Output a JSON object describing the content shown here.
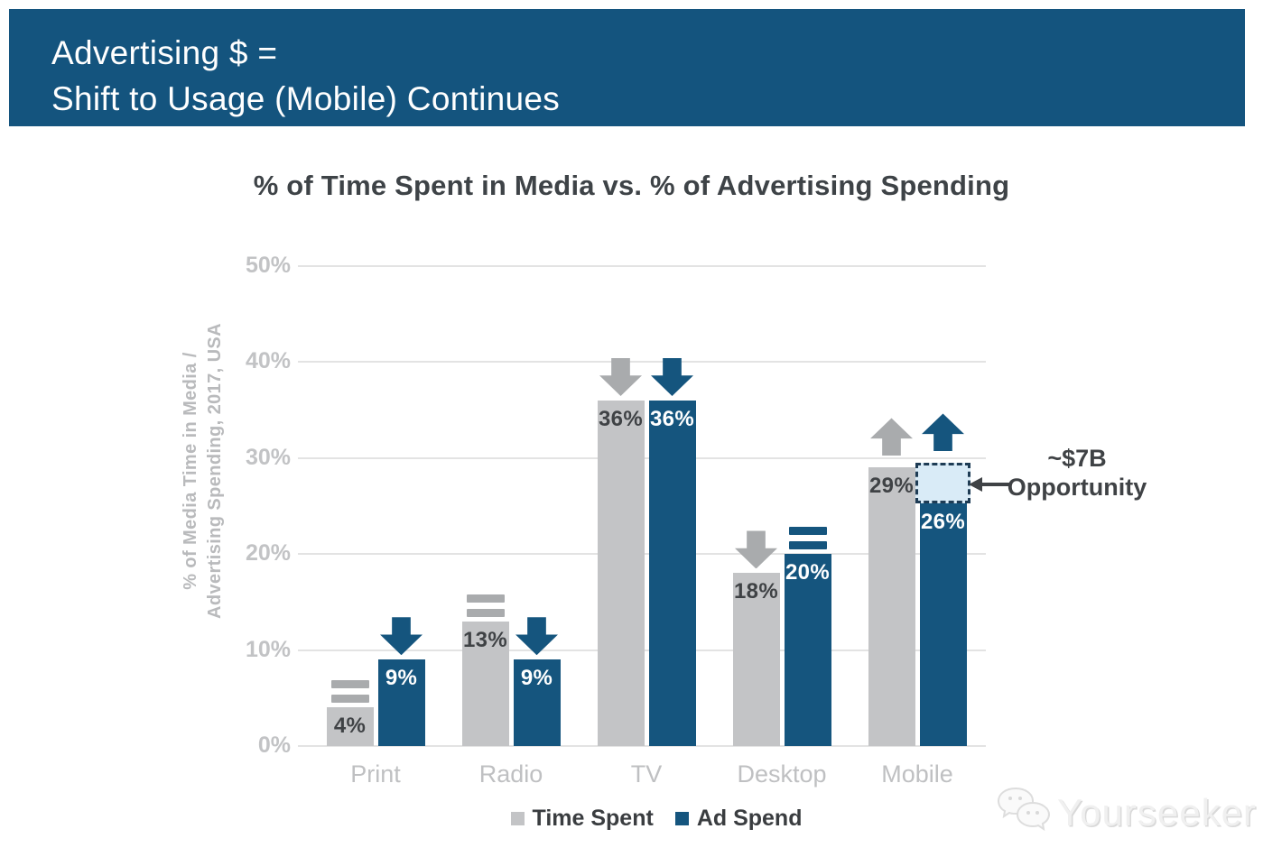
{
  "header": {
    "line1": "Advertising $ =",
    "line2": "Shift to Usage (Mobile) Continues"
  },
  "chart_data": {
    "type": "bar",
    "title": "% of Time Spent in Media vs. % of Advertising Spending",
    "ylabel": "% of Media Time in Media / Advertising Spending, 2017, USA",
    "ylabel_line1": "% of Media Time in Media /",
    "ylabel_line2": "Advertising Spending, 2017, USA",
    "categories": [
      "Print",
      "Radio",
      "TV",
      "Desktop",
      "Mobile"
    ],
    "series": [
      {
        "name": "Time Spent",
        "color": "#c3c4c6",
        "indicator_color": "#a9abad",
        "label_color": "#3f4245",
        "values": [
          4,
          13,
          36,
          18,
          29
        ],
        "trends": [
          "flat",
          "flat",
          "down",
          "down",
          "up"
        ]
      },
      {
        "name": "Ad Spend",
        "color": "#15557e",
        "indicator_color": "#15557e",
        "label_color": "#ffffff",
        "values": [
          9,
          9,
          36,
          20,
          26
        ],
        "trends": [
          "down",
          "down",
          "down",
          "flat",
          "up"
        ]
      }
    ],
    "unit": "%",
    "yticks": [
      0,
      10,
      20,
      30,
      40,
      50
    ],
    "ylim": [
      0,
      50
    ],
    "grid": true,
    "legend_position": "bottom",
    "annotation": {
      "line1": "~$7B",
      "line2": "Opportunity",
      "category": "Mobile",
      "series": "Ad Spend",
      "box_from": 26,
      "box_to": 29,
      "box_fill": "#d9ebf7",
      "box_border": "#1e3c55",
      "text_color": "#3f4245"
    }
  },
  "legend": {
    "items": [
      {
        "label": "Time Spent",
        "color": "#c3c4c6"
      },
      {
        "label": "Ad Spend",
        "color": "#15557e"
      }
    ]
  },
  "watermark": {
    "text": "Yourseeker"
  },
  "colors": {
    "banner_bg": "#14547e",
    "banner_text": "#ffffff",
    "title_text": "#3e4347",
    "tick_text": "#c2c3c5",
    "category_text": "#bfc0c2",
    "gridline": "#e3e3e3",
    "axis_label": "#b9babc",
    "legend_text": "#3a3d40",
    "watermark_text": "#f0f0f0",
    "background": "#ffffff"
  }
}
